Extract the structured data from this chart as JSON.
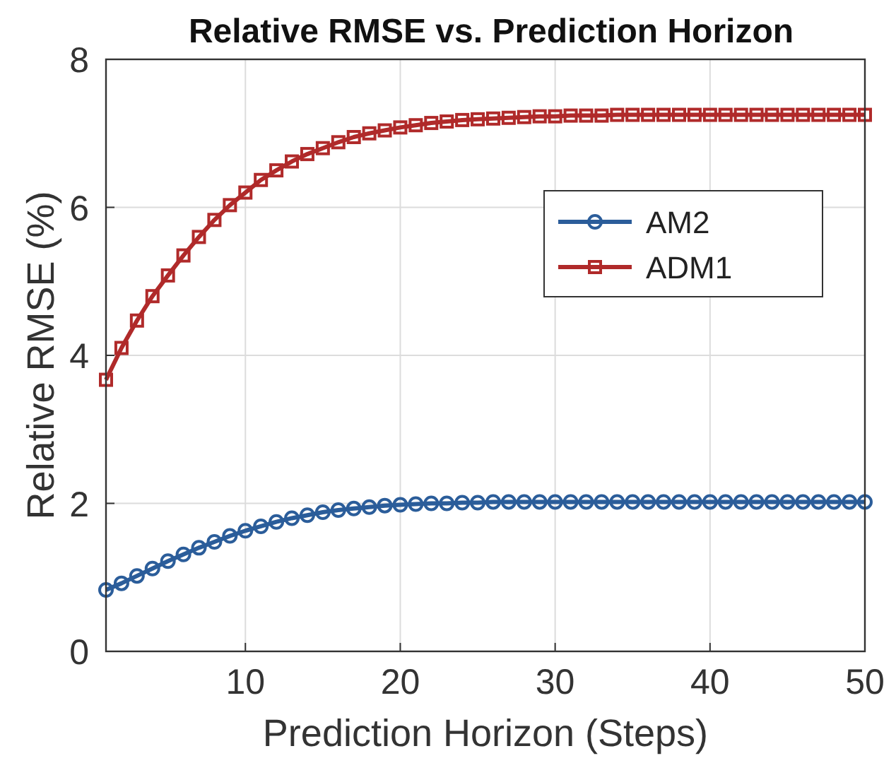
{
  "chart_data": {
    "type": "line",
    "title": "Relative RMSE vs. Prediction Horizon",
    "xlabel": "Prediction Horizon (Steps)",
    "ylabel": "Relative RMSE (%)",
    "x": [
      1,
      2,
      3,
      4,
      5,
      6,
      7,
      8,
      9,
      10,
      11,
      12,
      13,
      14,
      15,
      16,
      17,
      18,
      19,
      20,
      21,
      22,
      23,
      24,
      25,
      26,
      27,
      28,
      29,
      30,
      31,
      32,
      33,
      34,
      35,
      36,
      37,
      38,
      39,
      40,
      41,
      42,
      43,
      44,
      45,
      46,
      47,
      48,
      49,
      50
    ],
    "series": [
      {
        "name": "AM2",
        "color": "#2b5d9a",
        "marker": "circle",
        "values": [
          0.83,
          0.92,
          1.02,
          1.12,
          1.22,
          1.31,
          1.4,
          1.48,
          1.56,
          1.63,
          1.69,
          1.75,
          1.8,
          1.84,
          1.88,
          1.91,
          1.93,
          1.95,
          1.97,
          1.98,
          1.99,
          2.0,
          2.0,
          2.01,
          2.01,
          2.02,
          2.02,
          2.02,
          2.02,
          2.02,
          2.02,
          2.02,
          2.02,
          2.02,
          2.02,
          2.02,
          2.02,
          2.02,
          2.02,
          2.02,
          2.02,
          2.02,
          2.02,
          2.02,
          2.02,
          2.02,
          2.02,
          2.02,
          2.02,
          2.02
        ]
      },
      {
        "name": "ADM1",
        "color": "#b02a2a",
        "marker": "square",
        "values": [
          3.67,
          4.1,
          4.47,
          4.8,
          5.08,
          5.35,
          5.6,
          5.83,
          6.03,
          6.2,
          6.37,
          6.5,
          6.62,
          6.72,
          6.8,
          6.88,
          6.95,
          7.0,
          7.04,
          7.08,
          7.11,
          7.14,
          7.16,
          7.18,
          7.19,
          7.2,
          7.21,
          7.22,
          7.23,
          7.23,
          7.24,
          7.24,
          7.24,
          7.25,
          7.25,
          7.25,
          7.25,
          7.25,
          7.25,
          7.25,
          7.25,
          7.25,
          7.25,
          7.25,
          7.25,
          7.25,
          7.25,
          7.25,
          7.25,
          7.25
        ]
      }
    ],
    "xlim": [
      1,
      50
    ],
    "xticks": [
      10,
      20,
      30,
      40,
      50
    ],
    "ylim": [
      0,
      8
    ],
    "yticks": [
      0,
      2,
      4,
      6,
      8
    ],
    "grid": true,
    "legend": "top right",
    "line_style": "solid"
  }
}
